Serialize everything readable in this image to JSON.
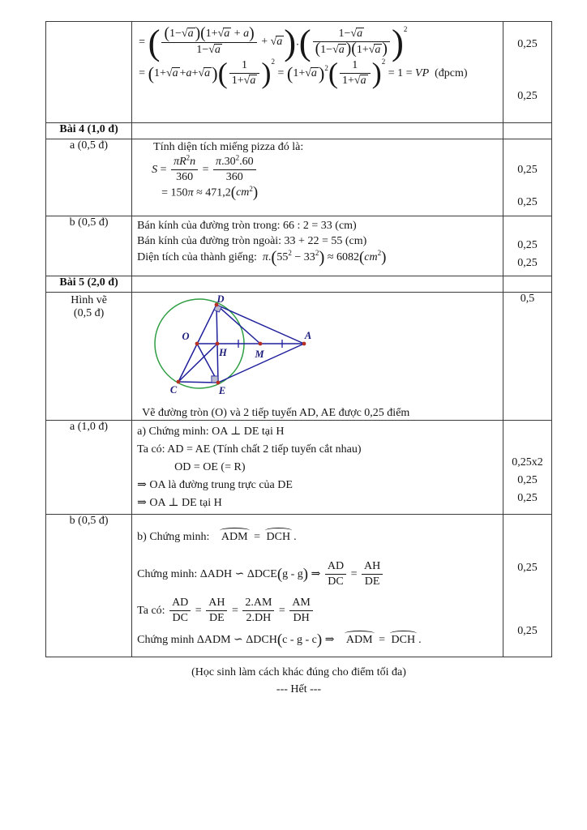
{
  "table": {
    "r1": {
      "points": [
        "0,25",
        "0,25"
      ],
      "math1": [
        "= ",
        {
          "p": {
            "h": 3.2,
            "c": [
              {
                "f": {
                  "n": [
                    {
                      "p": {
                        "h": 1.4,
                        "c": [
                          "1−",
                          {
                            "q": [
                              {
                                "i": "a"
                              }
                            ]
                          }
                        ]
                      }
                    },
                    {
                      "p": {
                        "h": 1.4,
                        "c": [
                          "1+",
                          {
                            "q": [
                              {
                                "i": "a"
                              }
                            ]
                          },
                          " + ",
                          {
                            "i": "a"
                          }
                        ]
                      }
                    }
                  ],
                  "d": [
                    "1−",
                    {
                      "q": [
                        {
                          "i": "a"
                        }
                      ]
                    }
                  ]
                }
              },
              " + ",
              {
                "q": [
                  {
                    "i": "a"
                  }
                ]
              }
            ]
          }
        },
        ".",
        {
          "p": {
            "h": 3.2,
            "sup": "2",
            "c": [
              {
                "f": {
                  "n": [
                    "1−",
                    {
                      "q": [
                        {
                          "i": "a"
                        }
                      ]
                    }
                  ],
                  "d": [
                    {
                      "p": {
                        "h": 1.4,
                        "c": [
                          "1−",
                          {
                            "q": [
                              {
                                "i": "a"
                              }
                            ]
                          }
                        ]
                      }
                    },
                    {
                      "p": {
                        "h": 1.4,
                        "c": [
                          "1+",
                          {
                            "q": [
                              {
                                "i": "a"
                              }
                            ]
                          }
                        ]
                      }
                    }
                  ]
                }
              }
            ]
          }
        }
      ],
      "math2": [
        "= ",
        {
          "p": {
            "h": 1.6,
            "c": [
              "1+",
              {
                "q": [
                  {
                    "i": "a"
                  }
                ]
              },
              "+",
              {
                "i": "a"
              },
              "+",
              {
                "q": [
                  {
                    "i": "a"
                  }
                ]
              }
            ]
          }
        },
        {
          "p": {
            "h": 2.6,
            "sup": "2",
            "c": [
              {
                "f": {
                  "n": [
                    "1"
                  ],
                  "d": [
                    "1+",
                    {
                      "q": [
                        {
                          "i": "a"
                        }
                      ]
                    }
                  ]
                }
              }
            ]
          }
        },
        " = ",
        {
          "p": {
            "h": 1.6,
            "sup": "2",
            "c": [
              "1+",
              {
                "q": [
                  {
                    "i": "a"
                  }
                ]
              }
            ]
          }
        },
        {
          "p": {
            "h": 2.6,
            "sup": "2",
            "c": [
              {
                "f": {
                  "n": [
                    "1"
                  ],
                  "d": [
                    "1+",
                    {
                      "q": [
                        {
                          "i": "a"
                        }
                      ]
                    }
                  ]
                }
              }
            ]
          }
        },
        " = 1 = ",
        {
          "i": "VP"
        },
        "  (đpcm)"
      ]
    },
    "r2": {
      "label": "Bài 4 (1,0 đ)"
    },
    "r3": {
      "label": "a (0,5 đ)",
      "intro": "Tính diện tích miếng pizza đó là:",
      "points": [
        "0,25",
        "0,25"
      ],
      "math1": [
        {
          "i": "S"
        },
        " = ",
        {
          "f": {
            "n": [
              {
                "i": "πR"
              },
              {
                "sup": "2"
              },
              {
                "i": "n"
              }
            ],
            "d": [
              "360"
            ]
          }
        },
        " = ",
        {
          "f": {
            "n": [
              {
                "i": "π"
              },
              ".30",
              {
                "sup": "2"
              },
              ".60"
            ],
            "d": [
              "360"
            ]
          }
        }
      ],
      "math2": [
        "= 150",
        {
          "i": "π"
        },
        " ≈ 471,2",
        {
          "p": {
            "h": 1.35,
            "c": [
              {
                "i": "cm"
              },
              {
                "sup": "2"
              }
            ]
          }
        }
      ]
    },
    "r4": {
      "label": "b (0,5 đ)",
      "line1": "Bán kính của đường tròn trong: 66 : 2 = 33 (cm)",
      "line2": "Bán kính của đường tròn ngoài: 33 + 22 = 55 (cm)",
      "points": [
        "0,25",
        "0,25"
      ],
      "math3": [
        "Diện tích của thành giếng:  ",
        {
          "i": "π"
        },
        ".",
        {
          "p": {
            "h": 1.5,
            "c": [
              "55",
              {
                "sup": "2"
              },
              " − 33",
              {
                "sup": "2"
              }
            ]
          }
        },
        " ≈ 6082",
        {
          "p": {
            "h": 1.35,
            "c": [
              {
                "i": "cm"
              },
              {
                "sup": "2"
              }
            ]
          }
        }
      ]
    },
    "r5": {
      "label": "Bài 5 (2,0 đ)"
    },
    "r6": {
      "label1": "Hình vẽ",
      "label2": "(0,5 đ)",
      "caption": "Vẽ đường tròn (O) và 2 tiếp tuyến AD, AE được 0,25 điểm",
      "points": [
        "0,5"
      ]
    },
    "r7": {
      "label": "a (1,0 đ)",
      "lines": [
        "a) Chứng minh: OA ⊥ DE tại H",
        "Ta có: AD = AE (Tính chất 2 tiếp tuyến cắt nhau)",
        "OD = OE (= R)",
        "⇒ OA là đường trung trực của DE",
        "⇒ OA ⊥ DE tại H"
      ],
      "points": [
        "0,25x2",
        "0,25",
        "0,25"
      ]
    },
    "r8": {
      "label": "b (0,5 đ)",
      "points": [
        "0,25",
        "0,25"
      ],
      "math1": [
        "b) Chứng minh:   ",
        {
          "arc": "ADM"
        },
        " = ",
        {
          "arc": "DCH"
        },
        "."
      ],
      "math2": [
        "Chứng minh: ΔADH ∽ ΔDCE",
        {
          "p": {
            "h": 1.35,
            "c": [
              "g - g"
            ]
          }
        },
        " ⇒ ",
        {
          "f": {
            "n": [
              "AD"
            ],
            "d": [
              "DC"
            ]
          }
        },
        " = ",
        {
          "f": {
            "n": [
              "AH"
            ],
            "d": [
              "DE"
            ]
          }
        }
      ],
      "math3": [
        "Ta có: ",
        {
          "f": {
            "n": [
              "AD"
            ],
            "d": [
              "DC"
            ]
          }
        },
        " = ",
        {
          "f": {
            "n": [
              "AH"
            ],
            "d": [
              "DE"
            ]
          }
        },
        " = ",
        {
          "f": {
            "n": [
              "2.AM"
            ],
            "d": [
              "2.DH"
            ]
          }
        },
        " = ",
        {
          "f": {
            "n": [
              "AM"
            ],
            "d": [
              "DH"
            ]
          }
        }
      ],
      "math4": [
        "Chứng minh ΔADM ∽ ΔDCH",
        {
          "p": {
            "h": 1.35,
            "c": [
              "c - g - c"
            ]
          }
        },
        " ⇒   ",
        {
          "arc": "ADM"
        },
        " = ",
        {
          "arc": "DCH"
        },
        "."
      ]
    }
  },
  "figure": {
    "labels": {
      "O": "O",
      "D": "D",
      "H": "H",
      "M": "M",
      "A": "A",
      "C": "C",
      "E": "E"
    },
    "colors": {
      "circle": "#2f9e44",
      "line": "#1f1f9c",
      "dot": "#b63024",
      "label": "#1b1b7a",
      "angle": "#b9b9cf"
    }
  },
  "footer": {
    "note": "(Học sinh làm cách khác đúng cho điểm tối đa)",
    "end": "--- Hết ---"
  }
}
